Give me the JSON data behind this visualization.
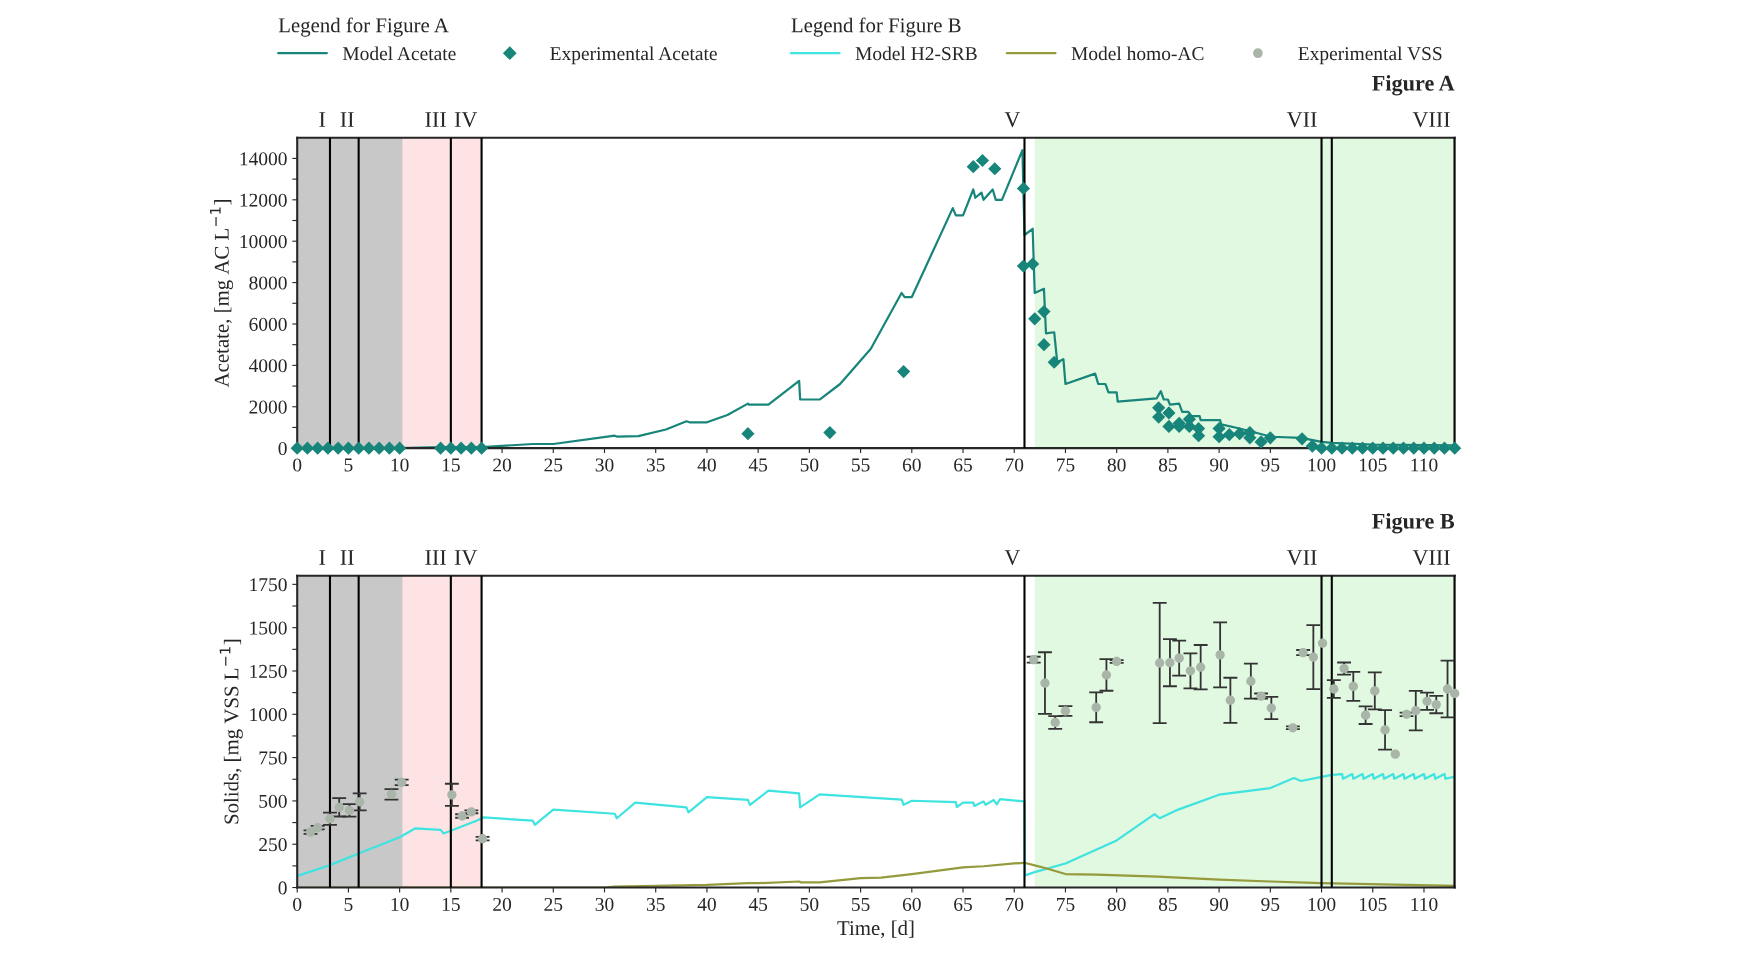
{
  "chart_data": [
    {
      "type": "line",
      "title": "Figure A",
      "ylabel": "Acetate, [mg AC L$^{−1}$]",
      "legend_title": "Legend for Figure A",
      "legend": "top left",
      "grid": false,
      "xlim": [
        0,
        113
      ],
      "xticks": [
        0,
        5,
        10,
        15,
        20,
        25,
        30,
        35,
        40,
        45,
        50,
        55,
        60,
        65,
        70,
        75,
        80,
        85,
        90,
        95,
        100,
        105,
        110
      ],
      "ylim": [
        0,
        15000
      ],
      "yticks": [
        0,
        {
          "value": 1000,
          "label": null
        },
        2000,
        {
          "value": 3000,
          "label": null
        },
        4000,
        {
          "value": 5000,
          "label": null
        },
        6000,
        {
          "value": 7000,
          "label": null
        },
        8000,
        {
          "value": 9000,
          "label": null
        },
        10000,
        {
          "value": 11000,
          "label": null
        },
        12000,
        {
          "value": 13000,
          "label": null
        },
        14000
      ],
      "bands": [
        {
          "axis": "x",
          "from": 0,
          "to": 10.3,
          "color": "#c8c8c8"
        },
        {
          "axis": "x",
          "from": 10.3,
          "to": 18,
          "color": "#fde3e3"
        },
        {
          "axis": "x",
          "from": 72,
          "to": 113,
          "color": "#e1f8e1"
        }
      ],
      "ref_lines": [
        {
          "axis": "x",
          "value": 3.2,
          "label": "I"
        },
        {
          "axis": "x",
          "value": 6,
          "label": "II"
        },
        {
          "axis": "x",
          "value": 15,
          "label": "III"
        },
        {
          "axis": "x",
          "value": 18,
          "label": "IV"
        },
        {
          "axis": "x",
          "value": 71,
          "label": "V"
        },
        {
          "axis": "x",
          "value": 100,
          "label": "VII"
        },
        {
          "axis": "x",
          "value": 101,
          "label": null
        },
        {
          "axis": "x",
          "value": 113,
          "label": "VIII"
        }
      ],
      "series": [
        {
          "name": "Model Acetate",
          "color": "#17857a",
          "x": [
            0,
            10,
            14,
            18,
            23,
            25,
            31,
            31.2,
            33.3,
            36,
            38,
            38.3,
            40,
            42,
            44,
            44.1,
            46,
            49,
            49.1,
            51,
            53,
            56,
            59,
            59.3,
            60,
            64,
            64.3,
            65,
            66,
            66.2,
            66.8,
            67,
            67.9,
            68.2,
            68.8,
            70.8,
            71,
            71.8,
            72,
            72.9,
            73.1,
            73.9,
            74.2,
            74.8,
            75,
            77.9,
            78.2,
            78.9,
            79.2,
            80,
            80.1,
            83.9,
            84.3,
            84.6,
            85,
            85.2,
            86.1,
            86.4,
            87,
            87.3,
            88.1,
            88.2,
            90.1,
            90.2,
            92,
            95.1,
            98,
            100,
            101,
            105,
            113
          ],
          "values": [
            0,
            0,
            50,
            50,
            200,
            200,
            600,
            560,
            580,
            900,
            1300,
            1250,
            1250,
            1600,
            2150,
            2100,
            2100,
            3250,
            2350,
            2350,
            3100,
            4800,
            7500,
            7300,
            7300,
            11600,
            11250,
            11250,
            12500,
            12100,
            12350,
            12000,
            12500,
            12000,
            12000,
            14400,
            10300,
            10600,
            7500,
            7700,
            5550,
            5600,
            4150,
            4300,
            3100,
            3600,
            3100,
            3100,
            2700,
            2700,
            2250,
            2400,
            2750,
            2350,
            2350,
            2100,
            2150,
            1750,
            1750,
            1550,
            1550,
            1350,
            1350,
            1150,
            950,
            550,
            500,
            300,
            250,
            170,
            130
          ]
        },
        {
          "name": "Experimental Acetate",
          "type": "scatter",
          "marker": "diamond",
          "color": "#17857a",
          "x": [
            0,
            1,
            2,
            3,
            4,
            5,
            6,
            7,
            8,
            9,
            10,
            14,
            15,
            16,
            17,
            18,
            44,
            52,
            59.2,
            66,
            66.9,
            68.1,
            70.9,
            70.9,
            71.8,
            72,
            72.9,
            72.9,
            73.9,
            84.1,
            84.1,
            85.1,
            85.1,
            86.1,
            86.1,
            87.1,
            87.1,
            88,
            88,
            90,
            90,
            91,
            92,
            93,
            93,
            94.1,
            95,
            98.1,
            99.1,
            100,
            101,
            102,
            103,
            104,
            105,
            106,
            107,
            108,
            109,
            110,
            111,
            112,
            113
          ],
          "values": [
            0,
            0,
            0,
            0,
            0,
            0,
            0,
            0,
            0,
            0,
            0,
            0,
            0,
            0,
            0,
            0,
            700,
            750,
            3700,
            13600,
            13900,
            13500,
            12550,
            8800,
            8900,
            6250,
            6600,
            5000,
            4150,
            1950,
            1500,
            1700,
            1050,
            1200,
            1050,
            1400,
            1050,
            950,
            600,
            950,
            550,
            650,
            700,
            750,
            500,
            300,
            500,
            450,
            100,
            0,
            0,
            0,
            0,
            0,
            0,
            0,
            0,
            0,
            0,
            0,
            0,
            0,
            0
          ]
        }
      ]
    },
    {
      "type": "line",
      "title": "Figure B",
      "xlabel": "Time, [d]",
      "ylabel": "Solids, [mg VSS L$^{−1}$]",
      "legend_title": "Legend for Figure B",
      "legend": "top right",
      "grid": false,
      "xlim": [
        0,
        113
      ],
      "xticks": [
        0,
        5,
        10,
        15,
        20,
        25,
        30,
        35,
        40,
        45,
        50,
        55,
        60,
        65,
        70,
        75,
        80,
        85,
        90,
        95,
        100,
        105,
        110
      ],
      "ylim": [
        0,
        1800
      ],
      "yticks": [
        0,
        {
          "value": 125,
          "label": null
        },
        250,
        {
          "value": 375,
          "label": null
        },
        500,
        {
          "value": 625,
          "label": null
        },
        750,
        {
          "value": 875,
          "label": null
        },
        1000,
        {
          "value": 1125,
          "label": null
        },
        1250,
        {
          "value": 1375,
          "label": null
        },
        1500,
        {
          "value": 1625,
          "label": null
        },
        1750
      ],
      "bands": [
        {
          "axis": "x",
          "from": 0,
          "to": 10.3,
          "color": "#c8c8c8"
        },
        {
          "axis": "x",
          "from": 10.3,
          "to": 18,
          "color": "#fde3e3"
        },
        {
          "axis": "x",
          "from": 72,
          "to": 113,
          "color": "#e1f8e1"
        }
      ],
      "ref_lines": [
        {
          "axis": "x",
          "value": 3.2,
          "label": "I"
        },
        {
          "axis": "x",
          "value": 6,
          "label": "II"
        },
        {
          "axis": "x",
          "value": 15,
          "label": "III"
        },
        {
          "axis": "x",
          "value": 18,
          "label": "IV"
        },
        {
          "axis": "x",
          "value": 71,
          "label": "V"
        },
        {
          "axis": "x",
          "value": 100,
          "label": "VII"
        },
        {
          "axis": "x",
          "value": 101,
          "label": null
        },
        {
          "axis": "x",
          "value": 113,
          "label": "VIII"
        }
      ],
      "series": [
        {
          "name": "Model H2-SRB",
          "color": "#3fe3e0",
          "x": [
            0,
            3,
            6,
            10,
            11.5,
            14,
            14.3,
            17.5,
            18.2,
            23,
            23.2,
            25,
            31,
            31.2,
            33,
            38,
            38.2,
            40,
            44,
            44.2,
            46,
            49,
            49.1,
            51,
            59,
            59.2,
            60,
            64.3,
            64.4,
            65,
            66,
            66.1,
            67,
            67.2,
            68,
            68.3,
            68.6,
            71,
            71.05,
            72,
            75,
            80,
            83.7,
            84.2,
            86,
            90,
            95,
            97.3,
            98,
            100,
            101,
            102,
            102.1,
            103,
            103.1,
            104,
            104.1,
            105,
            105.1,
            106,
            106.1,
            107,
            107.1,
            108,
            108.1,
            109,
            109.1,
            110,
            110.1,
            111,
            111.1,
            112,
            112.1,
            113
          ],
          "values": [
            67,
            125,
            197,
            290,
            341,
            333,
            312,
            386,
            405,
            386,
            362,
            450,
            426,
            400,
            490,
            463,
            434,
            522,
            506,
            477,
            559,
            543,
            463,
            538,
            508,
            478,
            501,
            493,
            465,
            490,
            490,
            471,
            497,
            478,
            505,
            480,
            510,
            497,
            70,
            89,
            139,
            272,
            424,
            400,
            450,
            536,
            574,
            632,
            615,
            639,
            650,
            655,
            628,
            655,
            628,
            655,
            628,
            655,
            628,
            655,
            628,
            655,
            628,
            655,
            628,
            655,
            628,
            655,
            628,
            655,
            628,
            655,
            628,
            640
          ]
        },
        {
          "name": "Model homo-AC",
          "color": "#959a3c",
          "x": [
            0,
            30,
            31,
            35,
            40,
            44,
            45,
            49,
            49.2,
            51,
            55,
            57,
            60,
            65,
            67,
            70,
            71,
            72,
            73,
            75,
            78,
            84,
            90,
            95,
            100,
            113
          ],
          "values": [
            0,
            0,
            5,
            10,
            15,
            25,
            25,
            35,
            30,
            30,
            55,
            57,
            78,
            117,
            123,
            139,
            143,
            128,
            113,
            78,
            74,
            63,
            46,
            35,
            25,
            10
          ]
        },
        {
          "name": "Experimental VSS",
          "type": "scatter",
          "marker": "circle",
          "color": "#a9b5a9",
          "x": [
            1.3,
            2,
            3.2,
            4.1,
            5.1,
            6.1,
            9.2,
            10.2,
            15.1,
            16.1,
            17,
            18.1,
            71.9,
            73,
            74,
            75,
            78,
            79,
            80,
            84.2,
            85.2,
            86.1,
            87.2,
            88.2,
            90.1,
            91.1,
            93.1,
            94.1,
            95.1,
            97.2,
            98.2,
            99.2,
            100.1,
            101.2,
            102.2,
            103.1,
            104.3,
            105.2,
            106.2,
            107.2,
            108.3,
            109.2,
            110.3,
            111.2,
            112.3,
            113
          ],
          "values": [
            320,
            346,
            397,
            463,
            445,
            495,
            538,
            607,
            535,
            413,
            437,
            282,
            1315,
            1180,
            953,
            1019,
            1040,
            1227,
            1305,
            1296,
            1298,
            1324,
            1251,
            1272,
            1343,
            1081,
            1191,
            1105,
            1036,
            922,
            1356,
            1330,
            1410,
            1146,
            1264,
            1161,
            995,
            1135,
            910,
            770,
            1000,
            1021,
            1075,
            1056,
            1146,
            1120
          ],
          "errors": [
            10,
            10,
            35,
            53,
            36,
            49,
            30,
            16,
            64,
            10,
            8,
            10,
            17,
            178,
            37,
            28,
            86,
            91,
            8,
            347,
            136,
            101,
            101,
            128,
            188,
            130,
            101,
            15,
            64,
            8,
            15,
            185,
            null,
            51,
            35,
            84,
            51,
            107,
            114,
            null,
            10,
            114,
            50,
            50,
            164,
            null
          ]
        }
      ]
    }
  ]
}
